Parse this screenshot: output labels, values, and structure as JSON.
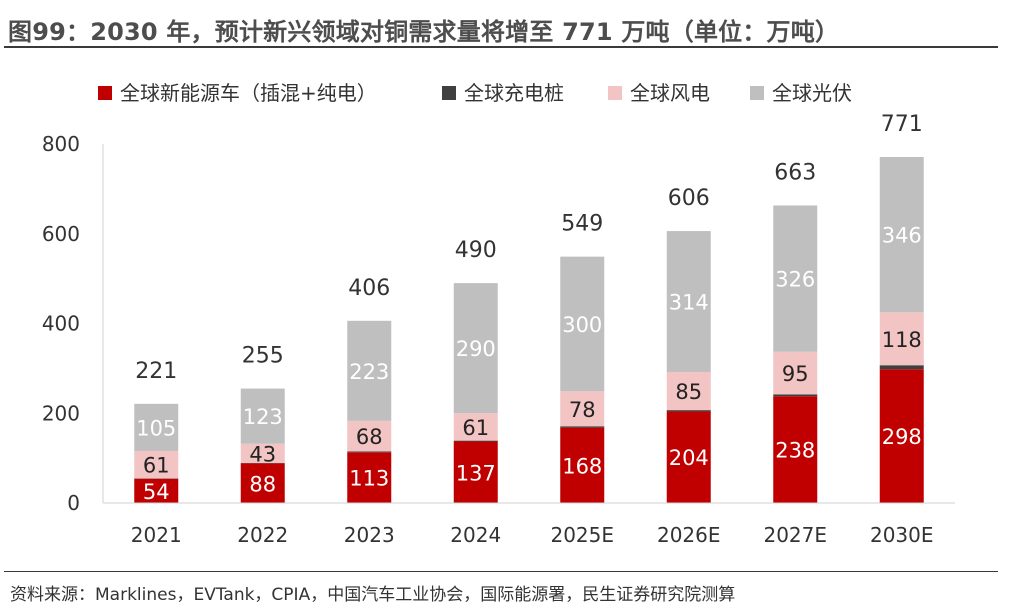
{
  "title": "图99：2030 年，预计新兴领域对铜需求量将增至 771 万吨（单位：万吨）",
  "source": "资料来源：Marklines，EVTank，CPIA，中国汽车工业协会，国际能源署，民生证券研究院测算",
  "chart_data": {
    "type": "bar",
    "stacked": true,
    "categories": [
      "2021",
      "2022",
      "2023",
      "2024",
      "2025E",
      "2026E",
      "2027E",
      "2030E"
    ],
    "series": [
      {
        "name": "全球新能源车（插混+纯电）",
        "color": "#c00000",
        "values": [
          54,
          88,
          113,
          137,
          168,
          204,
          238,
          298
        ],
        "labels": [
          "54",
          "88",
          "113",
          "137",
          "168",
          "204",
          "238",
          "298"
        ]
      },
      {
        "name": "全球充电桩",
        "color": "#404040",
        "values": [
          1,
          1,
          2,
          2,
          3,
          3,
          4,
          9
        ],
        "labels": []
      },
      {
        "name": "全球风电",
        "color": "#f2c4c4",
        "values": [
          61,
          43,
          68,
          61,
          78,
          85,
          95,
          118
        ],
        "labels": [
          "61",
          "43",
          "68",
          "61",
          "78",
          "85",
          "95",
          "118"
        ]
      },
      {
        "name": "全球光伏",
        "color": "#bfbfbf",
        "values": [
          105,
          123,
          223,
          290,
          300,
          314,
          326,
          346
        ],
        "labels": [
          "105",
          "123",
          "223",
          "290",
          "300",
          "314",
          "326",
          "346"
        ]
      }
    ],
    "totals": [
      221,
      255,
      406,
      490,
      549,
      606,
      663,
      771
    ],
    "ylim": [
      0,
      800
    ],
    "yticks": [
      0,
      200,
      400,
      600,
      800
    ],
    "xlabel": "",
    "ylabel": "",
    "legend_position": "top",
    "grid": false
  }
}
